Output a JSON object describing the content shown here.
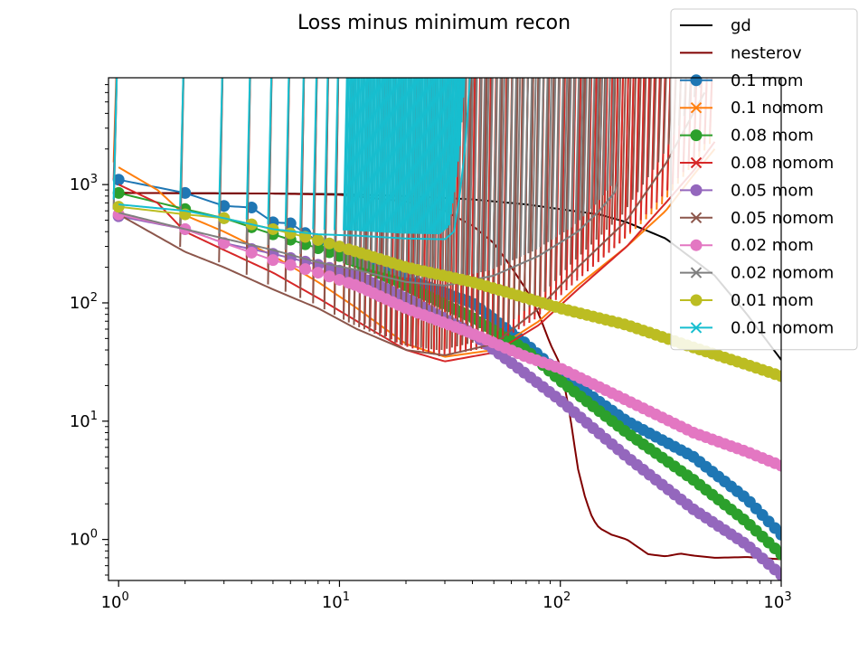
{
  "chart_data": {
    "type": "line",
    "title": "Loss minus minimum recon",
    "xlabel": "",
    "ylabel": "",
    "xscale": "log",
    "yscale": "log",
    "xlim": [
      0.9,
      1000
    ],
    "ylim": [
      0.45,
      8000
    ],
    "xticks": [
      {
        "value": 1,
        "base": "10",
        "exp": "0"
      },
      {
        "value": 10,
        "base": "10",
        "exp": "1"
      },
      {
        "value": 100,
        "base": "10",
        "exp": "2"
      },
      {
        "value": 1000,
        "base": "10",
        "exp": "3"
      }
    ],
    "yticks": [
      {
        "value": 1,
        "base": "10",
        "exp": "0"
      },
      {
        "value": 10,
        "base": "10",
        "exp": "1"
      },
      {
        "value": 100,
        "base": "10",
        "exp": "2"
      },
      {
        "value": 1000,
        "base": "10",
        "exp": "3"
      }
    ],
    "grid": false,
    "legend_position": "top-right",
    "series": [
      {
        "name": "gd",
        "color": "#000000",
        "marker": "none",
        "points": [
          [
            1,
            850
          ],
          [
            5,
            840
          ],
          [
            10,
            830
          ],
          [
            20,
            800
          ],
          [
            40,
            750
          ],
          [
            70,
            680
          ],
          [
            100,
            620
          ],
          [
            150,
            560
          ],
          [
            200,
            480
          ],
          [
            300,
            350
          ],
          [
            500,
            170
          ],
          [
            700,
            80
          ],
          [
            1000,
            33
          ]
        ]
      },
      {
        "name": "nesterov",
        "color": "#800000",
        "marker": "none",
        "points": [
          [
            1,
            850
          ],
          [
            5,
            840
          ],
          [
            10,
            820
          ],
          [
            20,
            720
          ],
          [
            30,
            600
          ],
          [
            40,
            450
          ],
          [
            50,
            320
          ],
          [
            60,
            200
          ],
          [
            70,
            130
          ],
          [
            80,
            80
          ],
          [
            90,
            45
          ],
          [
            100,
            30
          ],
          [
            110,
            12
          ],
          [
            120,
            4
          ],
          [
            130,
            2.2
          ],
          [
            140,
            1.5
          ],
          [
            150,
            1.25
          ],
          [
            170,
            1.1
          ],
          [
            200,
            1.0
          ],
          [
            250,
            0.75
          ],
          [
            300,
            0.72
          ],
          [
            350,
            0.76
          ],
          [
            400,
            0.73
          ],
          [
            500,
            0.7
          ],
          [
            700,
            0.71
          ],
          [
            1000,
            0.68
          ]
        ]
      },
      {
        "name": "0.1 mom",
        "color": "#1f77b4",
        "marker": "o",
        "points": [
          [
            1,
            1100
          ],
          [
            2,
            850
          ],
          [
            3,
            660
          ],
          [
            4,
            640
          ],
          [
            5,
            480
          ],
          [
            6,
            470
          ],
          [
            8,
            330
          ],
          [
            10,
            270
          ],
          [
            20,
            160
          ],
          [
            40,
            100
          ],
          [
            70,
            45
          ],
          [
            100,
            25
          ],
          [
            200,
            10
          ],
          [
            400,
            5
          ],
          [
            700,
            2.2
          ],
          [
            1000,
            1.1
          ]
        ]
      },
      {
        "name": "0.1 nomom",
        "color": "#ff7f0e",
        "marker": "x",
        "points": [
          [
            1,
            1400
          ],
          [
            1.5,
            900
          ],
          [
            2,
            550
          ],
          [
            3,
            400
          ],
          [
            5,
            250
          ],
          [
            8,
            150
          ],
          [
            12,
            90
          ],
          [
            20,
            45
          ],
          [
            30,
            35
          ],
          [
            50,
            40
          ],
          [
            80,
            70
          ],
          [
            120,
            140
          ],
          [
            200,
            300
          ],
          [
            300,
            600
          ],
          [
            400,
            1200
          ],
          [
            500,
            2000
          ]
        ]
      },
      {
        "name": "0.08 mom",
        "color": "#2ca02c",
        "marker": "o",
        "points": [
          [
            1,
            850
          ],
          [
            2,
            620
          ],
          [
            3,
            520
          ],
          [
            5,
            380
          ],
          [
            8,
            290
          ],
          [
            12,
            220
          ],
          [
            20,
            140
          ],
          [
            40,
            75
          ],
          [
            70,
            40
          ],
          [
            100,
            22
          ],
          [
            200,
            8
          ],
          [
            400,
            3.2
          ],
          [
            700,
            1.4
          ],
          [
            1000,
            0.75
          ]
        ]
      },
      {
        "name": "0.08 nomom",
        "color": "#d62728",
        "marker": "x",
        "points": [
          [
            1,
            1000
          ],
          [
            1.5,
            700
          ],
          [
            2,
            400
          ],
          [
            3,
            280
          ],
          [
            5,
            180
          ],
          [
            8,
            110
          ],
          [
            12,
            70
          ],
          [
            20,
            40
          ],
          [
            30,
            32
          ],
          [
            50,
            38
          ],
          [
            80,
            65
          ],
          [
            120,
            130
          ],
          [
            200,
            300
          ],
          [
            300,
            700
          ],
          [
            400,
            1300
          ],
          [
            500,
            2300
          ]
        ]
      },
      {
        "name": "0.05 mom",
        "color": "#9467bd",
        "marker": "o",
        "points": [
          [
            1,
            540
          ],
          [
            2,
            420
          ],
          [
            3,
            320
          ],
          [
            5,
            260
          ],
          [
            8,
            210
          ],
          [
            12,
            170
          ],
          [
            20,
            110
          ],
          [
            40,
            55
          ],
          [
            70,
            25
          ],
          [
            100,
            15
          ],
          [
            200,
            5
          ],
          [
            400,
            1.8
          ],
          [
            700,
            0.9
          ],
          [
            1000,
            0.5
          ]
        ]
      },
      {
        "name": "0.05 nomom",
        "color": "#8c564b",
        "marker": "x",
        "points": [
          [
            1,
            560
          ],
          [
            2,
            270
          ],
          [
            3,
            200
          ],
          [
            5,
            130
          ],
          [
            8,
            90
          ],
          [
            12,
            60
          ],
          [
            20,
            40
          ],
          [
            30,
            36
          ],
          [
            50,
            45
          ],
          [
            80,
            90
          ],
          [
            120,
            200
          ],
          [
            200,
            500
          ],
          [
            300,
            1500
          ],
          [
            400,
            4000
          ],
          [
            450,
            6000
          ]
        ]
      },
      {
        "name": "0.02 mom",
        "color": "#e377c2",
        "marker": "o",
        "points": [
          [
            1,
            560
          ],
          [
            2,
            420
          ],
          [
            3,
            320
          ],
          [
            5,
            230
          ],
          [
            8,
            180
          ],
          [
            12,
            140
          ],
          [
            20,
            90
          ],
          [
            40,
            55
          ],
          [
            70,
            35
          ],
          [
            100,
            28
          ],
          [
            200,
            15
          ],
          [
            400,
            8
          ],
          [
            700,
            5.5
          ],
          [
            1000,
            4.2
          ]
        ]
      },
      {
        "name": "0.02 nomom",
        "color": "#7f7f7f",
        "marker": "x",
        "points": [
          [
            1,
            580
          ],
          [
            2,
            420
          ],
          [
            3,
            350
          ],
          [
            5,
            280
          ],
          [
            8,
            220
          ],
          [
            12,
            190
          ],
          [
            20,
            150
          ],
          [
            30,
            140
          ],
          [
            50,
            170
          ],
          [
            80,
            250
          ],
          [
            120,
            400
          ],
          [
            150,
            600
          ],
          [
            180,
            900
          ],
          [
            185,
            2000
          ],
          [
            186,
            8000
          ]
        ]
      },
      {
        "name": "0.01 mom",
        "color": "#bcbd22",
        "marker": "o",
        "points": [
          [
            1,
            650
          ],
          [
            2,
            560
          ],
          [
            3,
            520
          ],
          [
            5,
            420
          ],
          [
            8,
            340
          ],
          [
            12,
            270
          ],
          [
            20,
            200
          ],
          [
            40,
            150
          ],
          [
            70,
            110
          ],
          [
            100,
            90
          ],
          [
            200,
            65
          ],
          [
            400,
            42
          ],
          [
            700,
            30
          ],
          [
            1000,
            24
          ]
        ]
      },
      {
        "name": "0.01 nomom",
        "color": "#17becf",
        "marker": "x",
        "points": [
          [
            1,
            680
          ],
          [
            2,
            600
          ],
          [
            3,
            520
          ],
          [
            5,
            420
          ],
          [
            8,
            380
          ],
          [
            12,
            370
          ],
          [
            20,
            350
          ],
          [
            30,
            345
          ],
          [
            33,
            400
          ],
          [
            35,
            800
          ],
          [
            37,
            2000
          ],
          [
            39,
            8000
          ]
        ]
      }
    ]
  }
}
